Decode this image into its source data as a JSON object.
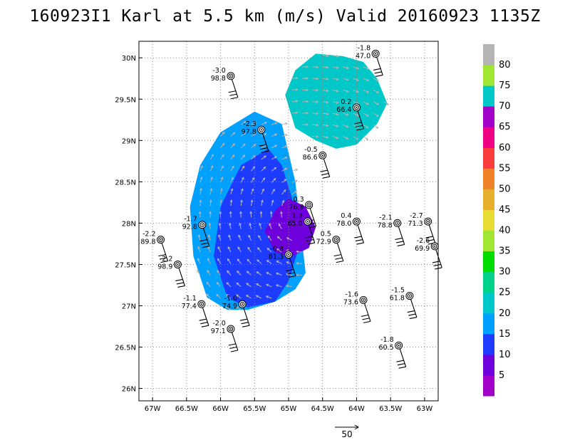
{
  "title": "160923I1 Karl at 5.5 km (m/s) Valid 20160923 1135Z",
  "chart_data": {
    "type": "heatmap",
    "title": "160923I1 Karl at 5.5 km (m/s) Valid 20160923 1135Z",
    "xlabel": "",
    "ylabel": "",
    "xlim": [
      -67.2,
      -62.8
    ],
    "ylim": [
      25.85,
      30.2
    ],
    "x_ticks": [
      "67W",
      "66.5W",
      "66W",
      "65.5W",
      "65W",
      "64.5W",
      "64W",
      "63.5W",
      "63W"
    ],
    "x_tick_values": [
      -67,
      -66.5,
      -66,
      -65.5,
      -65,
      -64.5,
      -64,
      -63.5,
      -63
    ],
    "y_ticks": [
      "26N",
      "26.5N",
      "27N",
      "27.5N",
      "28N",
      "28.5N",
      "29N",
      "29.5N",
      "30N"
    ],
    "y_tick_values": [
      26,
      26.5,
      27,
      27.5,
      28,
      28.5,
      29,
      29.5,
      30
    ],
    "grid": true,
    "colorbar": {
      "labels": [
        "5",
        "10",
        "15",
        "20",
        "25",
        "30",
        "35",
        "40",
        "45",
        "50",
        "55",
        "60",
        "65",
        "70",
        "75",
        "80"
      ],
      "colors": [
        "#a000c8",
        "#6e00dc",
        "#1e3cff",
        "#00a0ff",
        "#00c8c8",
        "#00d28c",
        "#00dc00",
        "#a0e632",
        "#e6dc32",
        "#e6af2d",
        "#f08228",
        "#fa3c3c",
        "#f00082",
        "#a000c8",
        "#00c8c8",
        "#a0e632",
        "#b4b4b4"
      ]
    },
    "regions": [
      {
        "level": 20,
        "color": "#00c8c8",
        "lon": [
          -65.05,
          -64.9,
          -64.6,
          -64.2,
          -63.9,
          -63.7,
          -63.55,
          -63.7,
          -64.0,
          -64.3,
          -64.6,
          -64.9,
          -65.05
        ],
        "lat": [
          29.55,
          29.85,
          30.05,
          30.02,
          29.95,
          29.75,
          29.45,
          29.2,
          28.95,
          28.9,
          29.0,
          29.15,
          29.55
        ]
      },
      {
        "level": 15,
        "color": "#00a0ff",
        "lon": [
          -65.5,
          -66.0,
          -66.3,
          -66.45,
          -66.4,
          -66.2,
          -65.9,
          -65.6,
          -65.2,
          -64.9,
          -64.75,
          -64.9,
          -65.1,
          -65.5
        ],
        "lat": [
          29.35,
          29.1,
          28.7,
          28.2,
          27.6,
          27.1,
          26.95,
          26.95,
          27.05,
          27.2,
          27.4,
          28.5,
          29.2,
          29.35
        ]
      },
      {
        "level": 10,
        "color": "#1e3cff",
        "lon": [
          -65.3,
          -65.7,
          -66.0,
          -66.1,
          -65.9,
          -65.6,
          -65.2,
          -65.0,
          -64.85,
          -64.95,
          -65.1,
          -65.3
        ],
        "lat": [
          28.9,
          28.7,
          28.2,
          27.6,
          27.1,
          26.98,
          27.05,
          27.3,
          27.7,
          28.3,
          28.7,
          28.9
        ]
      },
      {
        "level": 5,
        "color": "#6e00dc",
        "lon": [
          -65.2,
          -65.35,
          -65.2,
          -64.95,
          -64.7,
          -64.6,
          -64.75,
          -65.0,
          -65.2
        ],
        "lat": [
          28.15,
          27.9,
          27.65,
          27.6,
          27.7,
          27.95,
          28.2,
          28.3,
          28.15
        ]
      }
    ],
    "observations": [
      {
        "lon": -63.72,
        "lat": 30.05,
        "top": "-1.8",
        "bottom": "47.0"
      },
      {
        "lon": -65.85,
        "lat": 29.78,
        "top": "-3.0",
        "bottom": "98.8"
      },
      {
        "lon": -64.0,
        "lat": 29.4,
        "top": "0.2",
        "bottom": "66.4"
      },
      {
        "lon": -65.4,
        "lat": 29.13,
        "top": "-2.3",
        "bottom": "97.8"
      },
      {
        "lon": -64.5,
        "lat": 28.82,
        "top": "-0.5",
        "bottom": "86.6"
      },
      {
        "lon": -64.7,
        "lat": 28.22,
        "top": "0.3",
        "bottom": "76.8"
      },
      {
        "lon": -64.72,
        "lat": 28.02,
        "top": "1.3",
        "bottom": "65.0"
      },
      {
        "lon": -66.27,
        "lat": 27.98,
        "top": "-1.7",
        "bottom": "92.8"
      },
      {
        "lon": -64.0,
        "lat": 28.02,
        "top": "0.4",
        "bottom": "78.0"
      },
      {
        "lon": -63.4,
        "lat": 28.0,
        "top": "-2.1",
        "bottom": "78.8"
      },
      {
        "lon": -62.95,
        "lat": 28.02,
        "top": "-2.7",
        "bottom": "71.3"
      },
      {
        "lon": -66.88,
        "lat": 27.8,
        "top": "-2.2",
        "bottom": "89.8"
      },
      {
        "lon": -64.3,
        "lat": 27.8,
        "top": "0.5",
        "bottom": "72.9"
      },
      {
        "lon": -62.85,
        "lat": 27.72,
        "top": "-2.6",
        "bottom": "69.9"
      },
      {
        "lon": -65.0,
        "lat": 27.62,
        "top": "-0.8",
        "bottom": "81.3"
      },
      {
        "lon": -66.63,
        "lat": 27.5,
        "top": "-2.2",
        "bottom": "98.9"
      },
      {
        "lon": -63.9,
        "lat": 27.07,
        "top": "-1.6",
        "bottom": "73.6"
      },
      {
        "lon": -63.22,
        "lat": 27.12,
        "top": "-1.5",
        "bottom": "61.8"
      },
      {
        "lon": -66.28,
        "lat": 27.02,
        "top": "-1.1",
        "bottom": "77.4"
      },
      {
        "lon": -65.68,
        "lat": 27.02,
        "top": "-1.0",
        "bottom": "74.9"
      },
      {
        "lon": -65.85,
        "lat": 26.72,
        "top": "-2.0",
        "bottom": "97.1"
      },
      {
        "lon": -63.38,
        "lat": 26.52,
        "top": "-1.8",
        "bottom": "60.5"
      }
    ],
    "reference_vector": {
      "label": "50",
      "value": 50
    }
  }
}
